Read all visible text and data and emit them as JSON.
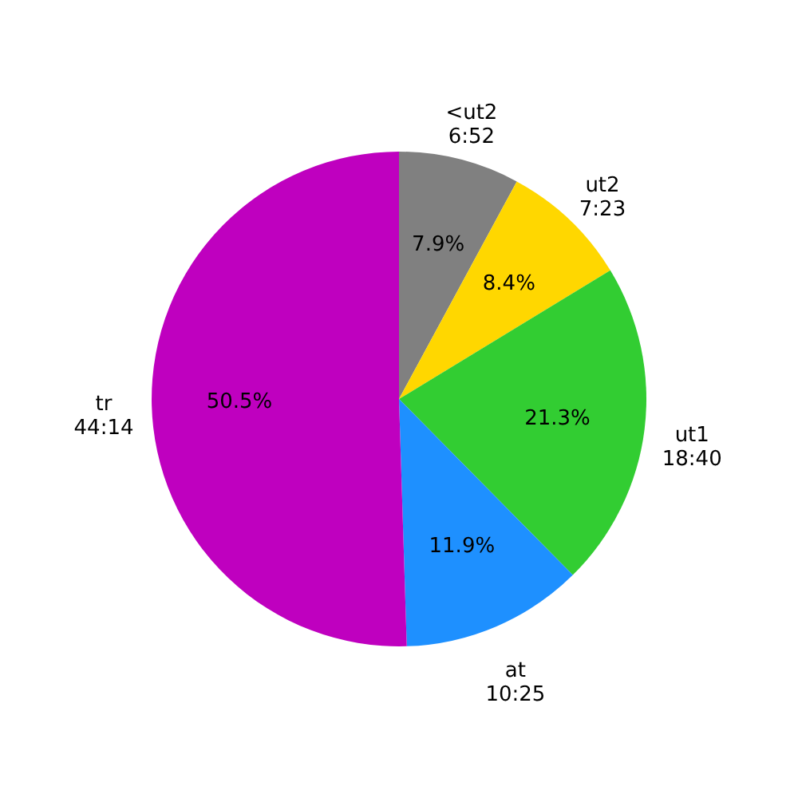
{
  "chart_data": {
    "type": "pie",
    "categories": [
      "<ut2\n6:52",
      "ut2\n7:23",
      "ut1\n18:40",
      "at\n10:25",
      "tr\n44:14"
    ],
    "values": [
      7.9,
      8.4,
      21.3,
      11.9,
      50.5
    ],
    "colors": [
      "#808080",
      "#ffd700",
      "#32cd32",
      "#1e90ff",
      "#bf00bf"
    ],
    "value_labels": [
      "7.9%",
      "8.4%",
      "21.3%",
      "11.9%",
      "50.5%"
    ]
  }
}
